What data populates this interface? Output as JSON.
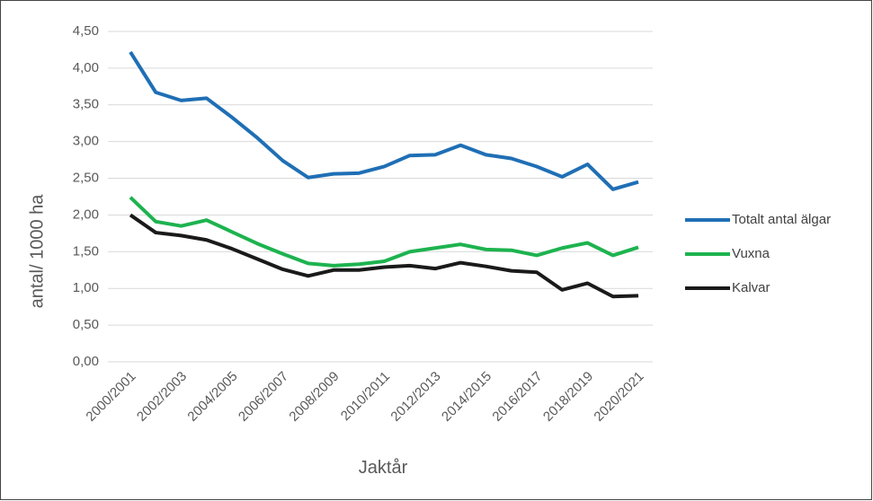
{
  "chart_data": {
    "type": "line",
    "y_label": "antal/ 1000 ha",
    "x_label": "Jaktår",
    "categories": [
      "2000/2001",
      null,
      "2002/2003",
      null,
      "2004/2005",
      null,
      "2006/2007",
      null,
      "2008/2009",
      null,
      "2010/2011",
      null,
      "2012/2013",
      null,
      "2014/2015",
      null,
      "2016/2017",
      null,
      "2018/2019",
      null,
      "2020/2021"
    ],
    "series": [
      {
        "name": "Totalt antal älgar",
        "color": "#1f6fb5",
        "values": [
          4.22,
          3.67,
          3.56,
          3.59,
          3.33,
          3.05,
          2.74,
          2.51,
          2.56,
          2.57,
          2.66,
          2.81,
          2.82,
          2.95,
          2.82,
          2.77,
          2.66,
          2.52,
          2.69,
          2.35,
          2.45
        ]
      },
      {
        "name": "Vuxna",
        "color": "#1db34f",
        "values": [
          2.24,
          1.91,
          1.85,
          1.93,
          1.77,
          1.61,
          1.47,
          1.34,
          1.31,
          1.33,
          1.37,
          1.5,
          1.55,
          1.6,
          1.53,
          1.52,
          1.45,
          1.55,
          1.62,
          1.45,
          1.56
        ]
      },
      {
        "name": "Kalvar",
        "color": "#1a1a1a",
        "values": [
          2.0,
          1.76,
          1.72,
          1.66,
          1.54,
          1.4,
          1.26,
          1.17,
          1.25,
          1.25,
          1.29,
          1.31,
          1.27,
          1.35,
          1.3,
          1.24,
          1.22,
          0.98,
          1.07,
          0.89,
          0.9
        ]
      }
    ],
    "ylim": [
      0,
      4.5
    ],
    "yticks": [
      {
        "value": 0,
        "label": "0,00"
      },
      {
        "value": 0.5,
        "label": "0,50"
      },
      {
        "value": 1,
        "label": "1,00"
      },
      {
        "value": 1.5,
        "label": "1,50"
      },
      {
        "value": 2,
        "label": "2,00"
      },
      {
        "value": 2.5,
        "label": "2,50"
      },
      {
        "value": 3,
        "label": "3,00"
      },
      {
        "value": 3.5,
        "label": "3,50"
      },
      {
        "value": 4,
        "label": "4,00"
      },
      {
        "value": 4.5,
        "label": "4,50"
      }
    ],
    "grid": true,
    "legend": "right"
  }
}
